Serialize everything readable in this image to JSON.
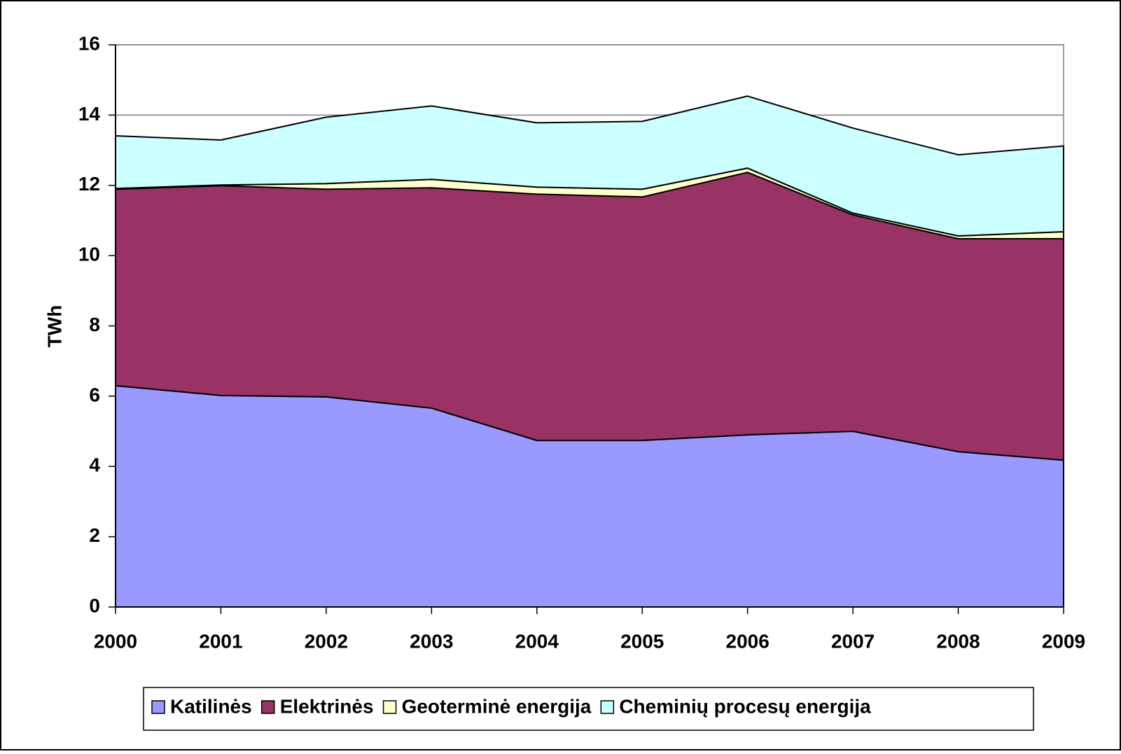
{
  "chart_data": {
    "type": "stacked_area",
    "y_label": "TWh",
    "categories": [
      "2000",
      "2001",
      "2002",
      "2003",
      "2004",
      "2005",
      "2006",
      "2007",
      "2008",
      "2009"
    ],
    "series": [
      {
        "name": "Katilinės",
        "color": "#9999ff",
        "values": [
          6.3,
          6.02,
          5.98,
          5.66,
          4.74,
          4.74,
          4.9,
          5.0,
          4.42,
          4.18
        ]
      },
      {
        "name": "Elektrinės",
        "color": "#993366",
        "values": [
          5.59,
          5.97,
          5.91,
          6.27,
          7.01,
          6.93,
          7.47,
          6.16,
          6.06,
          6.3
        ]
      },
      {
        "name": "Geoterminė energija",
        "color": "#ffffcc",
        "values": [
          0.02,
          0.02,
          0.16,
          0.24,
          0.2,
          0.22,
          0.12,
          0.05,
          0.08,
          0.2
        ]
      },
      {
        "name": "Cheminių procesų energija",
        "color": "#ccffff",
        "values": [
          1.5,
          1.28,
          1.89,
          2.09,
          1.83,
          1.93,
          2.05,
          2.42,
          2.31,
          2.44
        ]
      }
    ],
    "ylim": [
      0,
      16
    ],
    "yticks": [
      0,
      2,
      4,
      6,
      8,
      10,
      12,
      14,
      16
    ],
    "grid": true,
    "legend": "bottom"
  }
}
